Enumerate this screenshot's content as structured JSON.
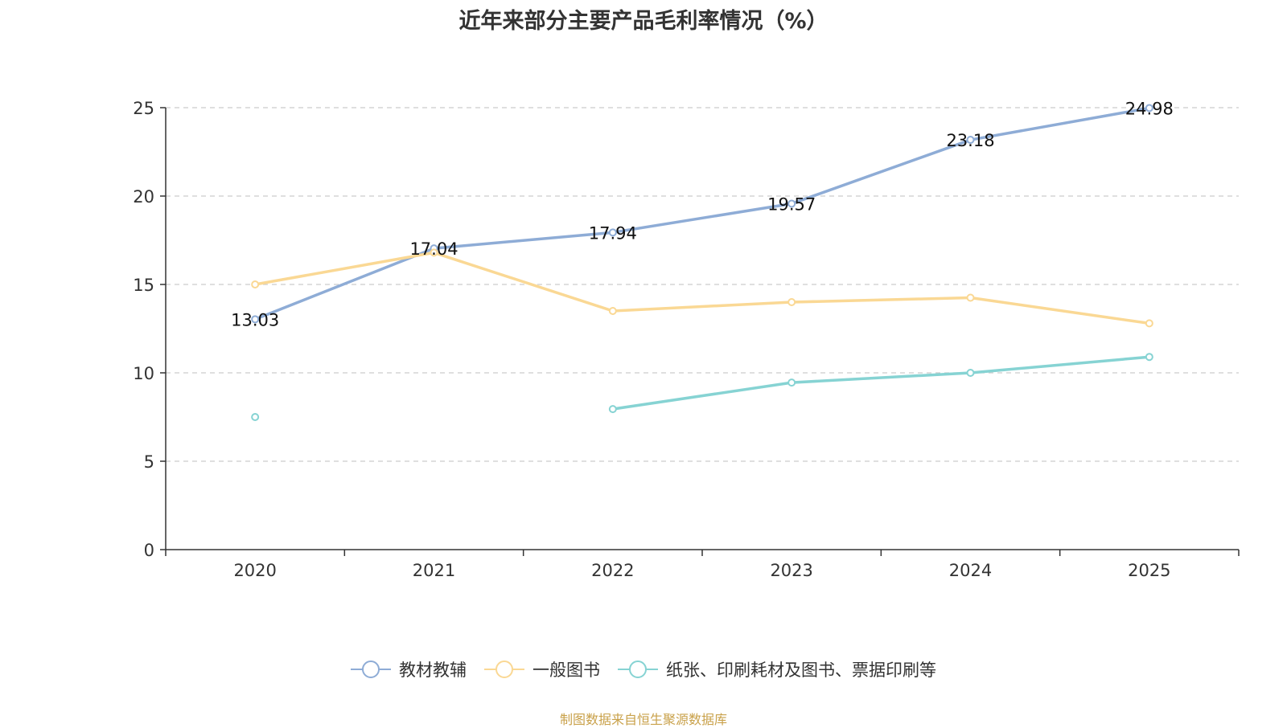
{
  "chart_data": {
    "type": "line",
    "title": "近年来部分主要产品毛利率情况（%）",
    "categories": [
      "2020",
      "2021",
      "2022",
      "2023",
      "2024",
      "2025"
    ],
    "ylim": [
      0,
      25
    ],
    "yticks": [
      0,
      5,
      10,
      15,
      20,
      25
    ],
    "grid": true,
    "legend_position": "bottom",
    "series": [
      {
        "name": "教材教辅",
        "color": "#8eacd6",
        "values": [
          13.03,
          17.04,
          17.94,
          19.57,
          23.18,
          24.98
        ],
        "show_labels": true
      },
      {
        "name": "一般图书",
        "color": "#fad894",
        "values": [
          15.0,
          16.8,
          13.5,
          14.0,
          14.25,
          12.8
        ],
        "show_labels": false
      },
      {
        "name": "纸张、印刷耗材及图书、票据印刷等",
        "color": "#86d3d3",
        "values": [
          7.5,
          null,
          7.95,
          9.45,
          10.0,
          10.9
        ],
        "show_labels": false
      }
    ],
    "source": "制图数据来自恒生聚源数据库"
  }
}
